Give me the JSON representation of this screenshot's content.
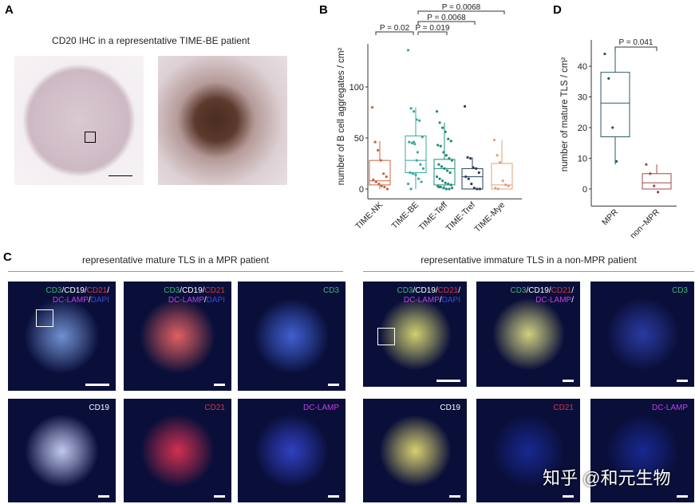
{
  "panels": {
    "A": "A",
    "B": "B",
    "C": "C",
    "D": "D"
  },
  "panelA": {
    "title": "CD20 IHC in a representative TIME-BE patient"
  },
  "panelC": {
    "left_title": "representative mature TLS in a MPR patient",
    "right_title": "representative immature TLS in a non-MPR patient",
    "tiles": [
      {
        "l1": [
          "CD3",
          "/",
          "CD19",
          "/",
          "CD21",
          "/"
        ],
        "l2": [
          "DC-LAMP",
          "/",
          "DAPI"
        ]
      },
      {
        "l1": [
          "CD3",
          "/",
          "CD19",
          "/",
          "CD21"
        ],
        "l2": [
          "DC-LAMP",
          "/",
          "DAPI"
        ]
      },
      {
        "l1": [
          "CD3"
        ],
        "l2": []
      },
      {
        "l1": [
          "CD3",
          "/",
          "CD19",
          "/",
          "CD21",
          "/"
        ],
        "l2": [
          "DC-LAMP",
          "/",
          "DAPI"
        ]
      },
      {
        "l1": [
          "CD3",
          "/",
          "CD19",
          "/",
          "CD21",
          "/"
        ],
        "l2": [
          "DC-LAMP",
          "/"
        ]
      },
      {
        "l1": [
          "CD3"
        ],
        "l2": []
      },
      {
        "l1": [
          "CD19"
        ],
        "l2": []
      },
      {
        "l1": [
          "CD21"
        ],
        "l2": []
      },
      {
        "l1": [
          "DC-LAMP"
        ],
        "l2": []
      },
      {
        "l1": [
          "CD19"
        ],
        "l2": []
      },
      {
        "l1": [
          "CD21"
        ],
        "l2": []
      },
      {
        "l1": [
          "DC-LAMP"
        ],
        "l2": []
      }
    ]
  },
  "watermark": "知乎 @和元生物",
  "chart_data": [
    {
      "type": "box",
      "panel": "B",
      "ylabel": "number of B cell aggregates / cm²",
      "ylim": [
        -5,
        140
      ],
      "yticks": [
        0,
        50,
        100
      ],
      "categories": [
        "TIME-NK",
        "TIME-BE",
        "TIME-Teff",
        "TIME-Tref",
        "TIME-Mye"
      ],
      "colors": [
        "#c8643c",
        "#3aa8a0",
        "#1e8c78",
        "#2c3e5a",
        "#e0a07a"
      ],
      "boxes": [
        {
          "q1": 4,
          "median": 8,
          "q3": 28,
          "lo": 0,
          "hi": 47
        },
        {
          "q1": 16,
          "median": 28,
          "q3": 52,
          "lo": 0,
          "hi": 80
        },
        {
          "q1": 4,
          "median": 20,
          "q3": 29,
          "lo": 0,
          "hi": 65
        },
        {
          "q1": 0,
          "median": 12,
          "q3": 20,
          "lo": 0,
          "hi": 31
        },
        {
          "q1": 0,
          "median": 4,
          "q3": 25,
          "lo": 0,
          "hi": 48
        }
      ],
      "points": [
        [
          80,
          46,
          38,
          28,
          15,
          12,
          9,
          7,
          5,
          3,
          2,
          0
        ],
        [
          136,
          79,
          76,
          68,
          67,
          51,
          46,
          45,
          44,
          36,
          24,
          20,
          16,
          15,
          14,
          10,
          7,
          5,
          0,
          46,
          28
        ],
        [
          76,
          65,
          60,
          56,
          49,
          47,
          43,
          42,
          36,
          33,
          30,
          28,
          24,
          22,
          20,
          18,
          16,
          12,
          10,
          8,
          6,
          5,
          4,
          3,
          2,
          1,
          0,
          0,
          1,
          2
        ],
        [
          81,
          31,
          30,
          21,
          20,
          16,
          12,
          10,
          5,
          1,
          0,
          0
        ],
        [
          48,
          33,
          26,
          8,
          4,
          3,
          1,
          0
        ]
      ],
      "comparisons": [
        {
          "from": 0,
          "to": 1,
          "label": "P = 0.02"
        },
        {
          "from": 1,
          "to": 2,
          "label": "P = 0.019"
        },
        {
          "from": 1,
          "to": 3,
          "label": "P = 0.0068"
        },
        {
          "from": 1,
          "to": 4,
          "label": "P = 0.0068"
        }
      ]
    },
    {
      "type": "box",
      "panel": "D",
      "ylabel": "number of mature TLS / cm²",
      "ylim": [
        -4,
        48
      ],
      "yticks": [
        0,
        10,
        20,
        30,
        40
      ],
      "categories": [
        "MPR",
        "non−MPR"
      ],
      "colors": [
        "#2c5a6a",
        "#a04848"
      ],
      "boxes": [
        {
          "q1": 17,
          "median": 28,
          "q3": 38,
          "lo": 8,
          "hi": 45
        },
        {
          "q1": 0,
          "median": 2,
          "q3": 5,
          "lo": 0,
          "hi": 8
        }
      ],
      "points": [
        [
          44,
          36,
          20,
          9
        ],
        [
          8,
          5,
          1,
          -1
        ]
      ],
      "comparisons": [
        {
          "from": 0,
          "to": 1,
          "label": "P = 0.041"
        }
      ]
    }
  ]
}
